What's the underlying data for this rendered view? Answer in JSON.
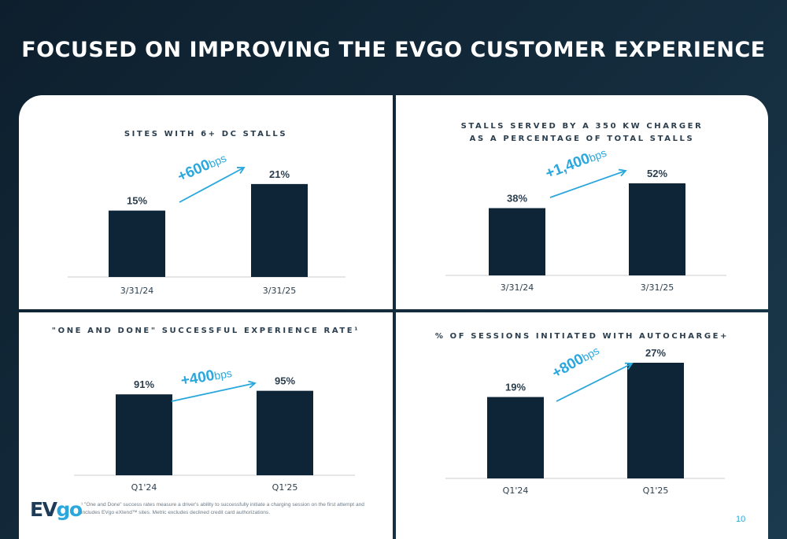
{
  "title": "FOCUSED ON IMPROVING THE EVGO CUSTOMER EXPERIENCE",
  "panels": {
    "p1": {
      "title_lines": [
        "SITES WITH 6+ DC STALLS"
      ]
    },
    "p2": {
      "title_lines": [
        "STALLS SERVED BY A 350 KW CHARGER",
        "AS A PERCENTAGE OF TOTAL STALLS"
      ]
    },
    "p3": {
      "title_lines": [
        "\"ONE AND DONE\" SUCCESSFUL EXPERIENCE RATE¹"
      ]
    },
    "p4": {
      "title_lines": [
        "% OF SESSIONS INITIATED WITH AUTOCHARGE+"
      ]
    }
  },
  "chart_data": [
    {
      "type": "bar",
      "title": "SITES WITH 6+ DC STALLS",
      "categories": [
        "3/31/24",
        "3/31/25"
      ],
      "values": [
        15,
        21
      ],
      "value_labels": [
        "15%",
        "21%"
      ],
      "annotation": {
        "number": "+600",
        "unit": "bps"
      },
      "ylim": [
        0,
        24
      ]
    },
    {
      "type": "bar",
      "title": "STALLS SERVED BY A 350 KW CHARGER AS A PERCENTAGE OF TOTAL STALLS",
      "categories": [
        "3/31/24",
        "3/31/25"
      ],
      "values": [
        38,
        52
      ],
      "value_labels": [
        "38%",
        "52%"
      ],
      "annotation": {
        "number": "+1,400",
        "unit": "bps"
      },
      "ylim": [
        0,
        60
      ]
    },
    {
      "type": "bar",
      "title": "\"ONE AND DONE\" SUCCESSFUL EXPERIENCE RATE¹",
      "categories": [
        "Q1'24",
        "Q1'25"
      ],
      "values": [
        91,
        95
      ],
      "value_labels": [
        "91%",
        "95%"
      ],
      "annotation": {
        "number": "+400",
        "unit": "bps"
      },
      "ylim": [
        0,
        100
      ]
    },
    {
      "type": "bar",
      "title": "% OF SESSIONS INITIATED WITH AUTOCHARGE+",
      "categories": [
        "Q1'24",
        "Q1'25"
      ],
      "values": [
        19,
        27
      ],
      "value_labels": [
        "19%",
        "27%"
      ],
      "annotation": {
        "number": "+800",
        "unit": "bps"
      },
      "ylim": [
        0,
        27
      ]
    }
  ],
  "footnote": {
    "line1": "¹ \"One and Done\" success rates measure a driver's ability to successfully initiate a charging session on the first attempt and",
    "line2": "includes EVgo eXtend™ sites.  Metric excludes declined credit card authorizations."
  },
  "logo": {
    "ev": "EV",
    "go": "go"
  },
  "page_number": "10",
  "colors": {
    "bar": "#0e2537",
    "accent": "#2aa8de",
    "text": "#2b3e4e",
    "axis": "#c8ccd0"
  }
}
